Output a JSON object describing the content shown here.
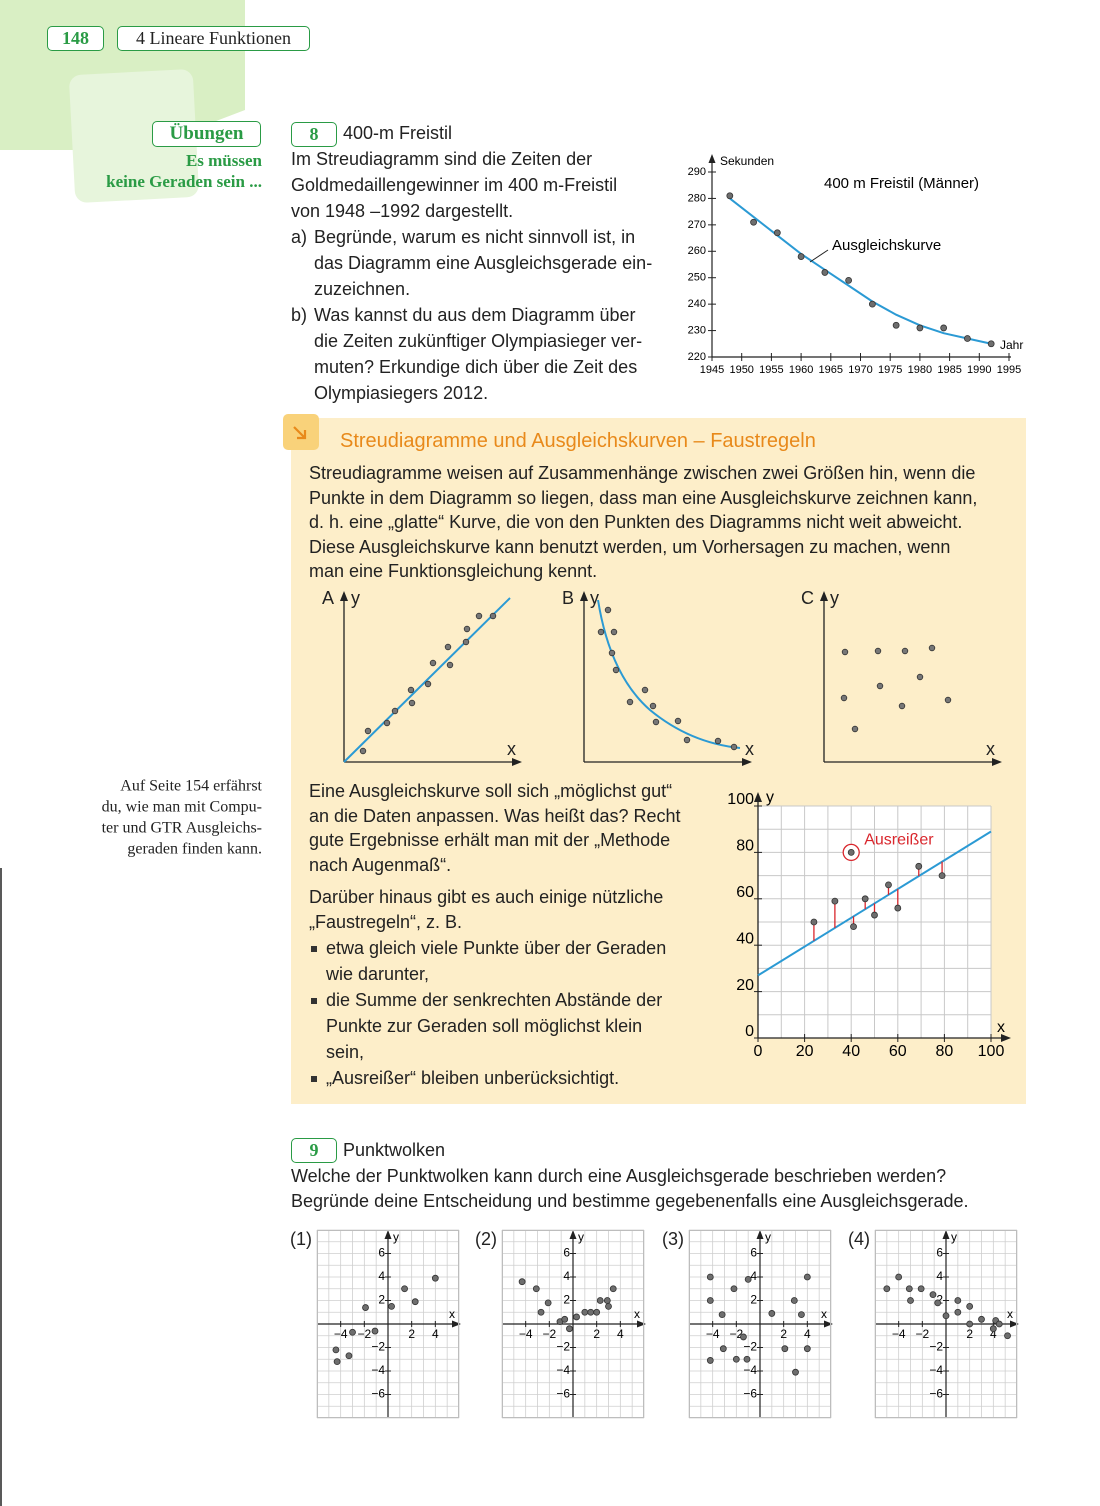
{
  "header": {
    "page": "148",
    "chapter": "4 Lineare Funktionen"
  },
  "sidebar": {
    "section": "Übungen",
    "subtitle": [
      "Es müssen",
      "keine Geraden sein ..."
    ],
    "note": [
      "Auf Seite 154 erfährst",
      "du, wie man mit Compu-",
      "ter und GTR Ausgleichs-",
      "geraden finden kann."
    ]
  },
  "exercise_8": {
    "number": "8",
    "title": "400-m Freistil",
    "intro": [
      "Im Streudiagramm sind die Zeiten der",
      "Goldmedaillengewinner im 400 m-Freistil",
      "von 1948 –1992 dargestellt."
    ],
    "tasks": [
      {
        "label": "a)",
        "lines": [
          "Begründe, warum es nicht sinnvoll ist, in",
          "das Diagramm eine Ausgleichsgerade ein-",
          "zuzeichnen."
        ]
      },
      {
        "label": "b)",
        "lines": [
          "Was kannst du aus dem Diagramm über",
          "die Zeiten zukünftiger Olympiasieger ver-",
          "muten? Erkundige dich über die Zeit des",
          "Olympiasiegers 2012."
        ]
      }
    ],
    "chart": {
      "type": "scatter",
      "title": "400 m Freistil (Männer)",
      "y_label": "Sekunden",
      "x_label": "Jahr",
      "x": [
        1948,
        1952,
        1956,
        1960,
        1964,
        1968,
        1972,
        1976,
        1980,
        1984,
        1988,
        1992
      ],
      "series": [
        {
          "name": "Ausgleichskurve",
          "kind": "line",
          "color": "#2b9ad4",
          "values": [
            280,
            273,
            266,
            259,
            253,
            247,
            241,
            236,
            232,
            229,
            227,
            225
          ]
        },
        {
          "kind": "markers",
          "color": "#6e6e6e",
          "values": [
            281,
            271,
            267,
            258,
            252,
            249,
            240,
            232,
            231,
            231,
            227,
            225
          ]
        }
      ],
      "xlim": [
        1945,
        1995
      ],
      "xticks": [
        1945,
        1950,
        1955,
        1960,
        1965,
        1970,
        1975,
        1980,
        1985,
        1990,
        1995
      ],
      "ylim": [
        220,
        290
      ],
      "yticks": [
        220,
        230,
        240,
        250,
        260,
        270,
        280,
        290
      ]
    }
  },
  "box": {
    "title": "Streudiagramme und Ausgleichskurven – Faustregeln",
    "paragraph": [
      "Streudiagramme weisen auf Zusammenhänge zwischen zwei Größen hin, wenn die",
      "Punkte in dem Diagramm so liegen, dass man eine Ausgleichskurve zeichnen kann,",
      "d. h. eine „glatte“ Kurve, die von den Punkten des Diagramms nicht weit abweicht.",
      "Diese Ausgleichskurve kann benutzt werden, um Vorhersagen zu machen, wenn",
      "man eine Funktionsgleichung kennt."
    ],
    "sketches": [
      {
        "label": "A",
        "x_label": "x",
        "y_label": "y"
      },
      {
        "label": "B",
        "x_label": "x",
        "y_label": "y"
      },
      {
        "label": "C",
        "x_label": "x",
        "y_label": "y"
      }
    ],
    "text2": [
      "Eine Ausgleichskurve soll sich „möglichst gut“",
      "an die Daten anpassen. Was heißt das? Recht",
      "gute Ergebnisse erhält man mit der „Methode",
      "nach Augenmaß“."
    ],
    "text3": [
      "Darüber hinaus gibt es auch einige nützliche",
      "„Faustregeln“, z. B."
    ],
    "bullets": [
      [
        "etwa gleich viele Punkte über der Geraden",
        "wie darunter,"
      ],
      [
        "die Summe der senkrechten Abstände der",
        "Punkte zur Geraden soll möglichst klein",
        "sein,"
      ],
      [
        "„Ausreißer“ bleiben unberücksichtigt."
      ]
    ],
    "chart": {
      "type": "scatter",
      "x_label": "x",
      "y_label": "y",
      "x": [
        24,
        33,
        41,
        46,
        50,
        56,
        60,
        69,
        79
      ],
      "values": [
        50,
        59,
        48,
        60,
        53,
        66,
        56,
        74,
        70
      ],
      "color": "#6e6e6e",
      "outlier": {
        "label": "Ausreißer",
        "x": 40,
        "y": 80,
        "color": "#d9262c"
      },
      "fit": {
        "x": [
          0,
          100
        ],
        "values": [
          27,
          89
        ],
        "color": "#2b9ad4"
      },
      "residual_color": "#d9262c",
      "xlim": [
        0,
        100
      ],
      "xticks": [
        0,
        20,
        40,
        60,
        80,
        100
      ],
      "ylim": [
        0,
        100
      ],
      "yticks": [
        0,
        20,
        40,
        60,
        80,
        100
      ],
      "xgrid": [
        0,
        10,
        20,
        30,
        40,
        50,
        60,
        70,
        80,
        90,
        100
      ],
      "ygrid": [
        0,
        10,
        20,
        30,
        40,
        50,
        60,
        70,
        80,
        90,
        100
      ]
    }
  },
  "exercise_9": {
    "number": "9",
    "title": "Punktwolken",
    "lines": [
      "Welche der Punktwolken kann durch eine Ausgleichsgerade beschrieben werden?",
      "Begründe deine Entscheidung und bestimme gegebenenfalls eine Ausgleichsgerade."
    ],
    "axes": {
      "x_label": "x",
      "y_label": "y",
      "xlim": [
        -6,
        6
      ],
      "ylim": [
        -8,
        8
      ],
      "xticks": [
        {
          "value": -4,
          "label": "−4"
        },
        {
          "value": -2,
          "label": "−2"
        },
        2,
        4
      ],
      "yticks": [
        6,
        4,
        2,
        {
          "value": -2,
          "label": "−2"
        },
        {
          "value": -4,
          "label": "−4"
        },
        {
          "value": -6,
          "label": "−6"
        }
      ],
      "xgrid": [
        -6,
        -5,
        -4,
        -3,
        -2,
        -1,
        0,
        1,
        2,
        3,
        4,
        5,
        6
      ],
      "ygrid": [
        -8,
        -7,
        -6,
        -5,
        -4,
        -3,
        -2,
        -1,
        0,
        1,
        2,
        3,
        4,
        5,
        6,
        7,
        8
      ],
      "color": "#6e6e6e"
    },
    "clouds": [
      {
        "label": "(1)",
        "type": "scatter",
        "x": [
          -4.4,
          -4.3,
          -3.3,
          -3.0,
          -1.9,
          -1.1,
          0.3,
          1.4,
          2.3,
          4.0
        ],
        "values": [
          -2.2,
          -3.2,
          -2.7,
          -0.7,
          1.4,
          -0.6,
          1.5,
          3.0,
          1.9,
          3.9
        ]
      },
      {
        "label": "(2)",
        "type": "scatter",
        "x": [
          -4.3,
          -3.1,
          -2.7,
          -2.1,
          -1.1,
          -0.7,
          -0.3,
          0.3,
          1.0,
          1.5,
          2.0,
          2.3,
          2.9,
          3.0,
          3.4
        ],
        "values": [
          3.6,
          3.0,
          1.0,
          1.8,
          0.2,
          0.4,
          -0.4,
          0.6,
          1.0,
          1.0,
          1.0,
          2.0,
          2.0,
          1.5,
          3.0
        ]
      },
      {
        "label": "(3)",
        "type": "scatter",
        "x": [
          -4.2,
          -4.2,
          -3.2,
          -2.2,
          -1.0,
          1.0,
          2.9,
          4.0,
          3.5,
          -4.2,
          -3.1,
          -2.0,
          -1.1,
          -1.4,
          2.1,
          4.0,
          3.0
        ],
        "values": [
          4.0,
          2.0,
          0.8,
          3.0,
          3.8,
          0.9,
          2.0,
          4.0,
          0.8,
          -3.1,
          -2.1,
          -3.0,
          -3.0,
          -1.1,
          -2.1,
          -2.1,
          -4.1
        ]
      },
      {
        "label": "(4)",
        "type": "scatter",
        "x": [
          -5.0,
          -4.0,
          -3.1,
          -3.0,
          -2.1,
          -1.1,
          -0.7,
          0.0,
          1.0,
          1.0,
          2.0,
          2.0,
          3.0,
          4.0,
          4.2,
          4.5,
          5.2
        ],
        "values": [
          3.0,
          4.0,
          3.0,
          2.0,
          3.0,
          2.5,
          1.8,
          0.7,
          1.0,
          2.0,
          1.5,
          0.0,
          0.4,
          -0.4,
          0.3,
          0.0,
          -1.0
        ]
      }
    ]
  }
}
